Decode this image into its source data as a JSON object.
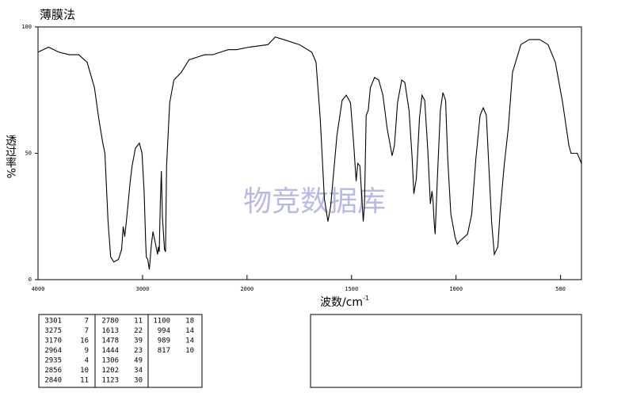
{
  "chart_data": {
    "type": "line",
    "title": "薄膜法",
    "xlabel": "波数/cm",
    "xlabel_sup": "-1",
    "ylabel": "透过率%",
    "watermark": "物竞数据库",
    "color": "#000000",
    "xlim": [
      4000,
      400
    ],
    "ylim": [
      0,
      100
    ],
    "xticks": [
      4000,
      3000,
      2000,
      1500,
      1000,
      500
    ],
    "yticks": [
      0,
      50,
      100
    ],
    "x": [
      4000,
      3900,
      3800,
      3700,
      3610,
      3530,
      3460,
      3420,
      3380,
      3360,
      3330,
      3305,
      3275,
      3230,
      3200,
      3185,
      3170,
      3150,
      3120,
      3100,
      3068,
      3030,
      3005,
      2985,
      2970,
      2964,
      2950,
      2935,
      2915,
      2900,
      2880,
      2856,
      2848,
      2840,
      2830,
      2820,
      2810,
      2790,
      2780,
      2770,
      2740,
      2700,
      2630,
      2555,
      2480,
      2405,
      2330,
      2255,
      2180,
      2100,
      1990,
      1900,
      1865,
      1825,
      1750,
      1690,
      1670,
      1650,
      1630,
      1613,
      1600,
      1570,
      1545,
      1525,
      1505,
      1490,
      1478,
      1470,
      1460,
      1444,
      1438,
      1430,
      1420,
      1410,
      1390,
      1370,
      1350,
      1330,
      1306,
      1295,
      1280,
      1260,
      1245,
      1225,
      1210,
      1202,
      1190,
      1175,
      1163,
      1150,
      1135,
      1123,
      1115,
      1110,
      1105,
      1100,
      1090,
      1075,
      1063,
      1050,
      1040,
      1025,
      1005,
      994,
      985,
      945,
      925,
      905,
      885,
      870,
      855,
      845,
      830,
      817,
      800,
      790,
      770,
      750,
      730,
      690,
      650,
      600,
      560,
      525,
      490,
      460,
      450,
      420,
      400
    ],
    "values": [
      90,
      92,
      90,
      89,
      89,
      86,
      76,
      64,
      54,
      50,
      23,
      9,
      7,
      8,
      12,
      21,
      17,
      25,
      38,
      45,
      52,
      54,
      50,
      35,
      15,
      9,
      8,
      4,
      14,
      19,
      15,
      10,
      13,
      11,
      30,
      43,
      25,
      12,
      11,
      45,
      70,
      79,
      82,
      87,
      88,
      89,
      89,
      90,
      91,
      91,
      92,
      93,
      96,
      95,
      93,
      90,
      86,
      64,
      32,
      23,
      29,
      57,
      71,
      73,
      70,
      54,
      39,
      46,
      45,
      23,
      30,
      65,
      67,
      76,
      80,
      79,
      73,
      60,
      49,
      53,
      70,
      79,
      78,
      67,
      48,
      34,
      40,
      64,
      73,
      71,
      51,
      30,
      35,
      31,
      23,
      18,
      39,
      67,
      74,
      71,
      48,
      26,
      17,
      14,
      15,
      18,
      26,
      48,
      65,
      68,
      65,
      48,
      23,
      10,
      13,
      26,
      45,
      60,
      82,
      93,
      95,
      95,
      93,
      86,
      70,
      53,
      50,
      50,
      46
    ]
  },
  "peak_table": {
    "rows": [
      [
        3301,
        7
      ],
      [
        3275,
        7
      ],
      [
        3170,
        16
      ],
      [
        2964,
        9
      ],
      [
        2935,
        4
      ],
      [
        2856,
        10
      ],
      [
        2840,
        11
      ],
      [
        2780,
        11
      ],
      [
        1613,
        22
      ],
      [
        1478,
        39
      ],
      [
        1444,
        23
      ],
      [
        1306,
        49
      ],
      [
        1202,
        34
      ],
      [
        1123,
        30
      ],
      [
        1100,
        18
      ],
      [
        994,
        14
      ],
      [
        989,
        14
      ],
      [
        817,
        10
      ]
    ]
  }
}
